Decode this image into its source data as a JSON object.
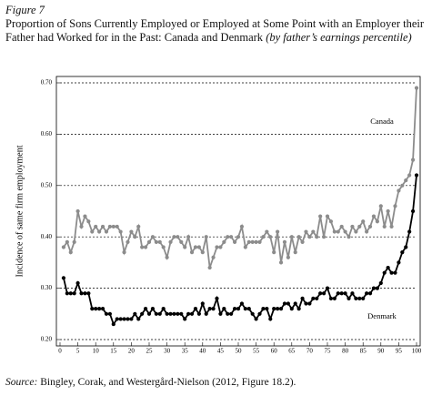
{
  "figure_label": "Figure 7",
  "source_label": "Source:",
  "source": "Bingley, Corak, and Westergård-Nielson (2012, Figure 18.2).",
  "chart_data": {
    "type": "line",
    "title": "Proportion of Sons Currently Employed or Employed at Some Point with an Employer their Father had Worked for in the Past: Canada and Denmark",
    "subtitle": "(by father’s earnings percentile)",
    "y_label": "Incidence of same firm employment",
    "x": [
      1,
      2,
      3,
      4,
      5,
      6,
      7,
      8,
      9,
      10,
      11,
      12,
      13,
      14,
      15,
      16,
      17,
      18,
      19,
      20,
      21,
      22,
      23,
      24,
      25,
      26,
      27,
      28,
      29,
      30,
      31,
      32,
      33,
      34,
      35,
      36,
      37,
      38,
      39,
      40,
      41,
      42,
      43,
      44,
      45,
      46,
      47,
      48,
      49,
      50,
      51,
      52,
      53,
      54,
      55,
      56,
      57,
      58,
      59,
      60,
      61,
      62,
      63,
      64,
      65,
      66,
      67,
      68,
      69,
      70,
      71,
      72,
      73,
      74,
      75,
      76,
      77,
      78,
      79,
      80,
      81,
      82,
      83,
      84,
      85,
      86,
      87,
      88,
      89,
      90,
      91,
      92,
      93,
      94,
      95,
      96,
      97,
      98,
      99,
      100
    ],
    "series": [
      {
        "name": "Canada",
        "color": "#8c8c8c",
        "values": [
          0.38,
          0.39,
          0.37,
          0.39,
          0.45,
          0.42,
          0.44,
          0.43,
          0.41,
          0.42,
          0.41,
          0.42,
          0.41,
          0.42,
          0.42,
          0.42,
          0.41,
          0.37,
          0.39,
          0.41,
          0.4,
          0.42,
          0.38,
          0.38,
          0.39,
          0.4,
          0.39,
          0.39,
          0.38,
          0.36,
          0.39,
          0.4,
          0.4,
          0.39,
          0.38,
          0.4,
          0.37,
          0.38,
          0.38,
          0.37,
          0.4,
          0.34,
          0.36,
          0.38,
          0.38,
          0.39,
          0.4,
          0.4,
          0.39,
          0.4,
          0.42,
          0.38,
          0.39,
          0.39,
          0.39,
          0.39,
          0.4,
          0.41,
          0.4,
          0.37,
          0.41,
          0.35,
          0.39,
          0.36,
          0.4,
          0.37,
          0.4,
          0.39,
          0.41,
          0.4,
          0.41,
          0.4,
          0.44,
          0.4,
          0.44,
          0.43,
          0.41,
          0.41,
          0.42,
          0.41,
          0.4,
          0.42,
          0.41,
          0.42,
          0.43,
          0.41,
          0.42,
          0.44,
          0.43,
          0.46,
          0.42,
          0.45,
          0.42,
          0.46,
          0.49,
          0.5,
          0.51,
          0.52,
          0.55,
          0.69
        ]
      },
      {
        "name": "Denmark",
        "color": "#000000",
        "values": [
          0.32,
          0.29,
          0.29,
          0.29,
          0.31,
          0.29,
          0.29,
          0.29,
          0.26,
          0.26,
          0.26,
          0.26,
          0.25,
          0.25,
          0.23,
          0.24,
          0.24,
          0.24,
          0.24,
          0.24,
          0.25,
          0.24,
          0.25,
          0.26,
          0.25,
          0.26,
          0.25,
          0.25,
          0.26,
          0.25,
          0.25,
          0.25,
          0.25,
          0.25,
          0.24,
          0.25,
          0.25,
          0.26,
          0.25,
          0.27,
          0.25,
          0.26,
          0.26,
          0.28,
          0.25,
          0.26,
          0.25,
          0.25,
          0.26,
          0.26,
          0.27,
          0.26,
          0.26,
          0.25,
          0.24,
          0.25,
          0.26,
          0.26,
          0.24,
          0.26,
          0.26,
          0.26,
          0.27,
          0.27,
          0.26,
          0.27,
          0.26,
          0.28,
          0.27,
          0.27,
          0.28,
          0.28,
          0.29,
          0.29,
          0.3,
          0.28,
          0.28,
          0.29,
          0.29,
          0.29,
          0.28,
          0.29,
          0.28,
          0.28,
          0.28,
          0.29,
          0.29,
          0.3,
          0.3,
          0.31,
          0.33,
          0.34,
          0.33,
          0.33,
          0.35,
          0.37,
          0.38,
          0.41,
          0.45,
          0.52
        ]
      }
    ],
    "xlim": [
      0,
      100
    ],
    "xticks": [
      0,
      5,
      10,
      15,
      20,
      25,
      30,
      35,
      40,
      45,
      50,
      55,
      60,
      65,
      70,
      75,
      80,
      85,
      90,
      95,
      100
    ],
    "ylim": [
      0.2,
      0.7
    ],
    "yticks": [
      {
        "value": 0.2,
        "label": "0.20"
      },
      {
        "value": 0.3,
        "label": "0.30"
      },
      {
        "value": 0.4,
        "label": "0.40"
      },
      {
        "value": 0.5,
        "label": "0.50"
      },
      {
        "value": 0.6,
        "label": "0.60"
      },
      {
        "value": 0.7,
        "label": "0.70"
      }
    ],
    "grid": true
  }
}
